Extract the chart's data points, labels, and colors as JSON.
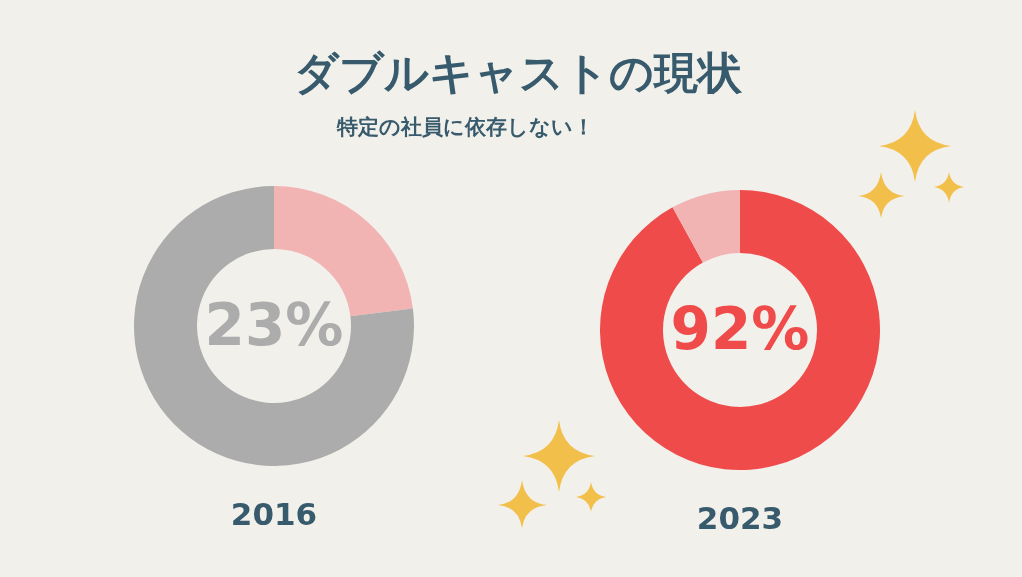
{
  "chart_data": [
    {
      "type": "donut",
      "title": "ダブルキャストの現状",
      "subtitle": "特定の社員に依存しない！",
      "xlabel": "2016",
      "categories": [
        null,
        null
      ],
      "values": [
        23,
        77
      ],
      "colors": [
        "#f2b3b3",
        "#acacac"
      ],
      "value_labels": [
        "23%",
        null
      ]
    },
    {
      "type": "donut",
      "xlabel": "2023",
      "categories": [
        null,
        null
      ],
      "values": [
        92,
        8
      ],
      "colors": [
        "#f04b4b",
        "#f2b3b3"
      ],
      "value_labels": [
        "92%",
        null
      ]
    }
  ]
}
